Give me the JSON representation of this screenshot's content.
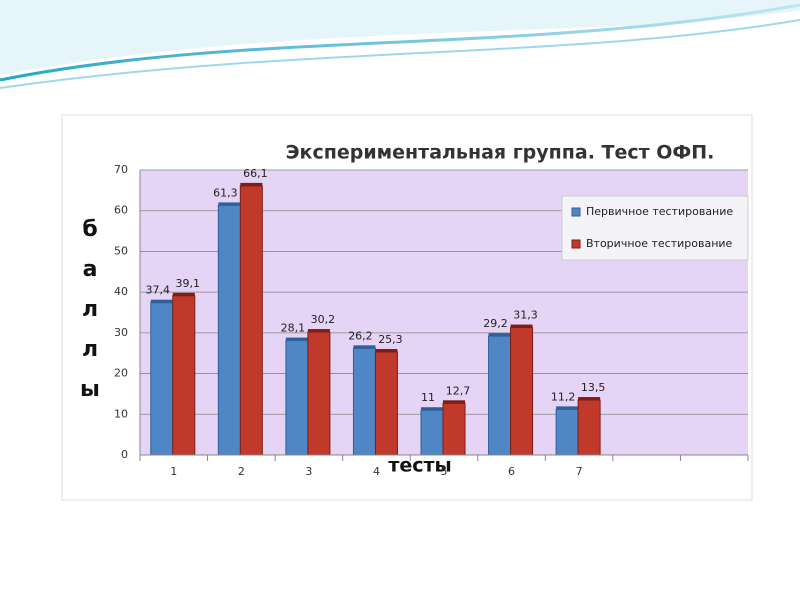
{
  "chart_data": {
    "type": "bar",
    "title": "Экспериментальная группа. Тест ОФП.",
    "y_label": "баллы",
    "x_label": "тесты",
    "categories": [
      "1",
      "2",
      "3",
      "4",
      "5",
      "6",
      "7",
      null,
      null
    ],
    "series": [
      {
        "name": "Первичное тестирование",
        "color": "#4f86c6",
        "values": [
          37.4,
          61.3,
          28.1,
          26.2,
          11,
          29.2,
          11.2,
          null,
          null
        ],
        "value_labels": [
          "37,4",
          "61,3",
          "28,1",
          "26,2",
          "11",
          "29,2",
          "11,2",
          null,
          null
        ]
      },
      {
        "name": "Вторичное тестирование",
        "color": "#c0392b",
        "values": [
          39.1,
          66.1,
          30.2,
          25.3,
          12.7,
          31.3,
          13.5,
          null,
          null
        ],
        "value_labels": [
          "39,1",
          "66,1",
          "30,2",
          "25,3",
          "12,7",
          "31,3",
          "13,5",
          null,
          null
        ]
      }
    ],
    "ylim": [
      0,
      70
    ],
    "yticks": [
      0,
      10,
      20,
      30,
      40,
      50,
      60,
      70
    ],
    "grid": true,
    "legend": "upper right"
  }
}
